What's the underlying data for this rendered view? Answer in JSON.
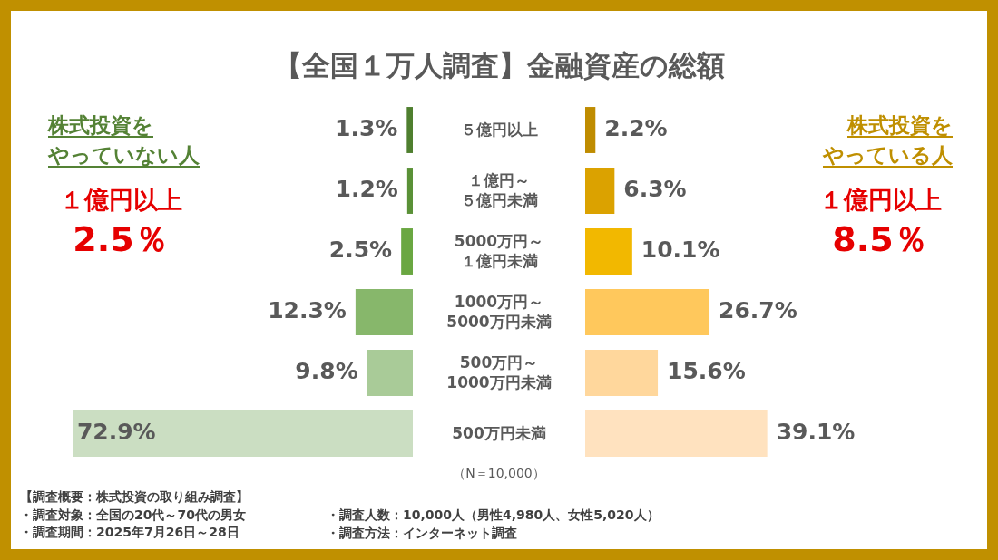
{
  "chart_data": [
    {
      "type": "bar",
      "orientation": "horizontal",
      "title": "【全国１万人調査】金融資産の総額",
      "categories": [
        "５億円以上",
        "１億円～５億円未満",
        "5000万円～１億円未満",
        "1000万円～5000万円未満",
        "500万円～1000万円未満",
        "500万円未満"
      ],
      "series": [
        {
          "name": "株式投資をやっていない人",
          "color": "#548235",
          "colors": [
            "#4f7f2f",
            "#5a9137",
            "#6aa741",
            "#87b76b",
            "#a9cb98",
            "#cbdec2"
          ],
          "values": [
            1.3,
            1.2,
            2.5,
            12.3,
            9.8,
            72.9
          ],
          "value_labels": [
            "1.3%",
            "1.2%",
            "2.5%",
            "12.3%",
            "9.8%",
            "72.9%"
          ]
        }
      ],
      "tick_labels": "y",
      "annotations": [
        "（N＝10,000）",
        "【調査概要：株式投資の取り組み調査】",
        "・調査対象：全国の20代～70代の男女",
        "・調査人数：10,000人（男性4,980人、女性5,020人）",
        "・調査期間：2025年7月26日～28日",
        "・調査方法：インターネット調査",
        "１億円以上",
        "2.5％"
      ]
    },
    {
      "type": "bar",
      "orientation": "horizontal",
      "categories": [
        null,
        null,
        null,
        null,
        null,
        null
      ],
      "series": [
        {
          "name": "株式投資をやっている人",
          "color": "#bf8f00",
          "colors": [
            "#bf8c00",
            "#dba200",
            "#f2b800",
            "#ffc85c",
            "#ffd79c",
            "#ffe2bf"
          ],
          "values": [
            2.2,
            6.3,
            10.1,
            26.7,
            15.6,
            39.1
          ],
          "value_labels": [
            "2.2%",
            "6.3%",
            "10.1%",
            "26.7%",
            "15.6%",
            "39.1%"
          ]
        }
      ],
      "tick_labels": false,
      "annotations": [
        "１億円以上",
        "8.5％"
      ]
    }
  ]
}
